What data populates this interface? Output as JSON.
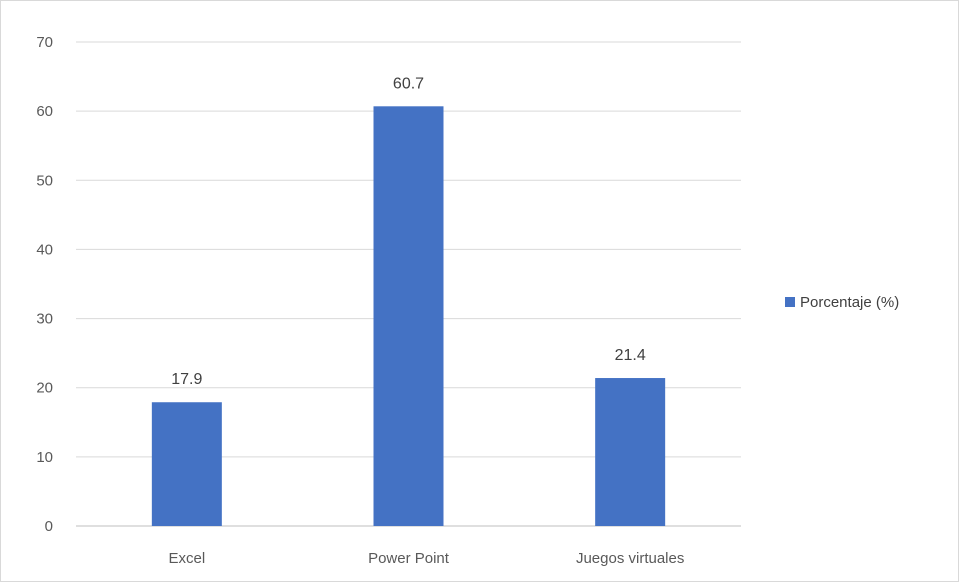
{
  "chart_data": {
    "type": "bar",
    "title": "",
    "xlabel": "",
    "ylabel": "",
    "categories": [
      "Excel",
      "Power Point",
      "Juegos virtuales"
    ],
    "series": [
      {
        "name": "Porcentaje (%)",
        "values": [
          17.9,
          60.7,
          21.4
        ],
        "color": "#4472c4"
      }
    ],
    "data_labels": [
      "17.9",
      "60.7",
      "21.4"
    ],
    "ylim": [
      0,
      70
    ],
    "yticks": [
      0,
      10,
      20,
      30,
      40,
      50,
      60,
      70
    ],
    "grid": true,
    "legend_position": "right"
  }
}
